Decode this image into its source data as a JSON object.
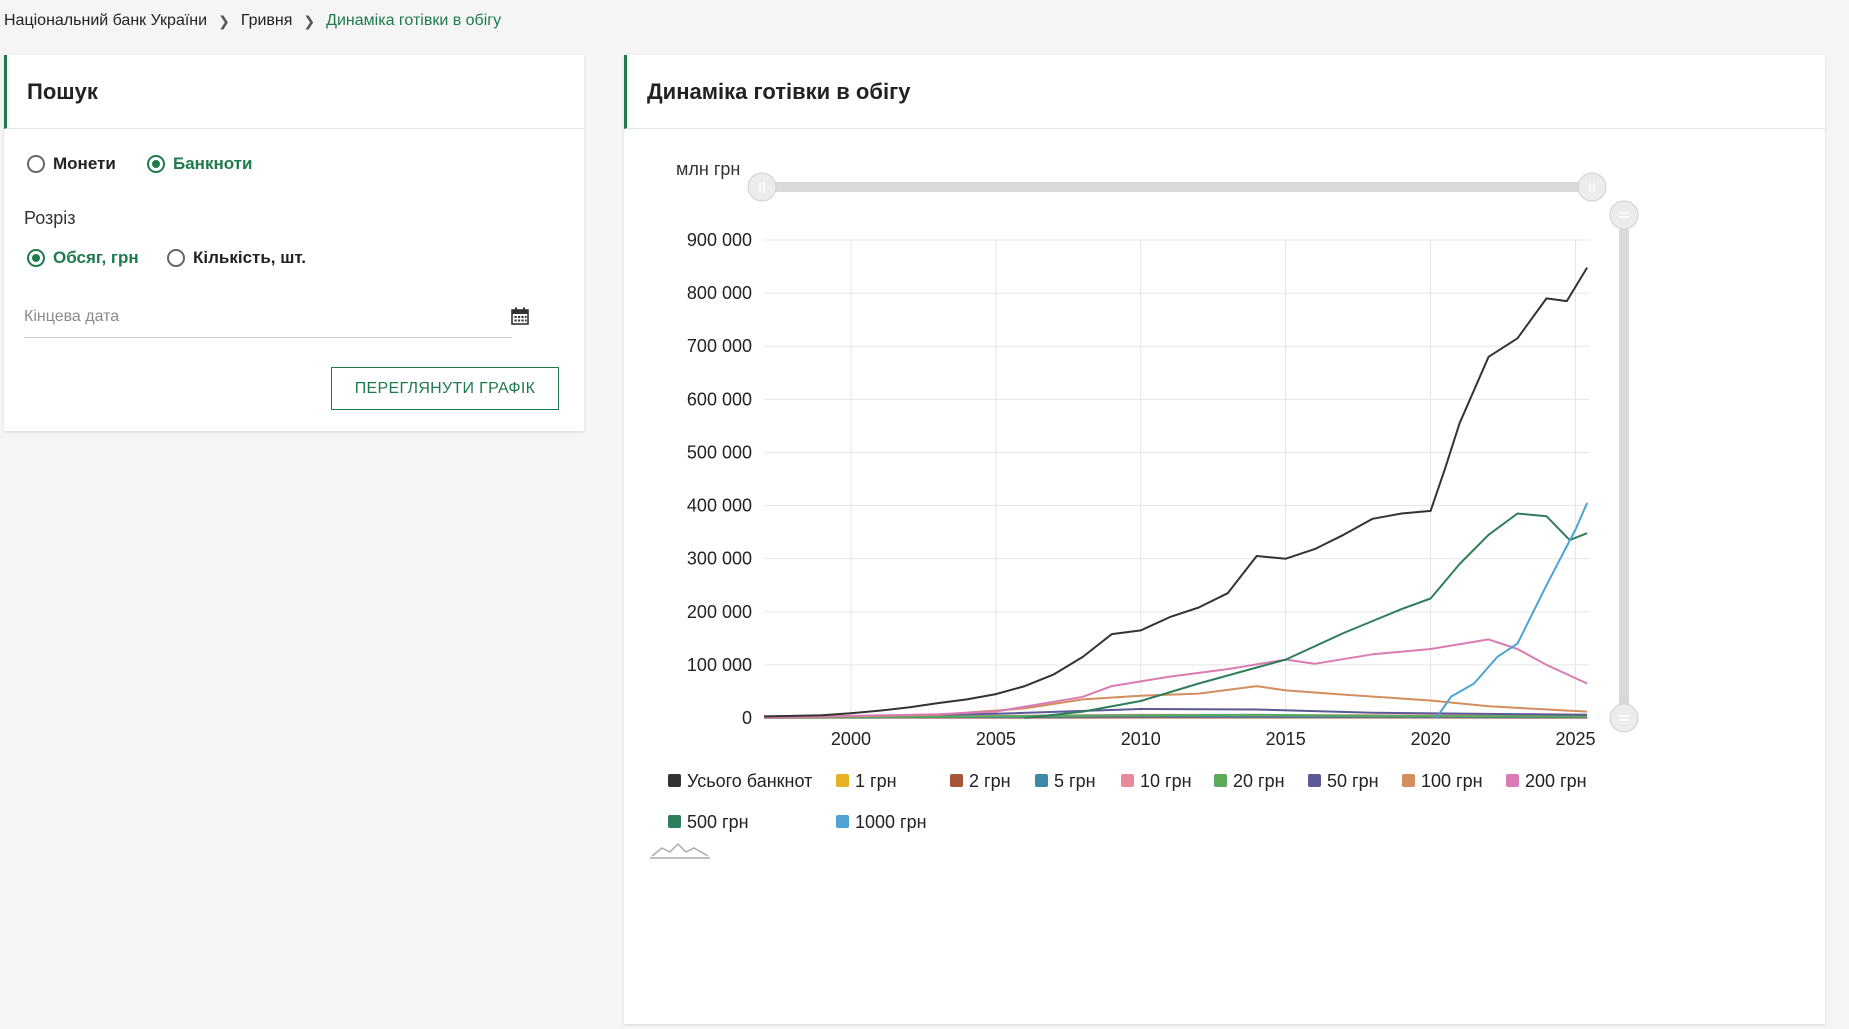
{
  "breadcrumb": {
    "items": [
      "Національний банк України",
      "Гривня",
      "Динаміка готівки в обігу"
    ]
  },
  "search_panel": {
    "title": "Пошук",
    "type_options": [
      {
        "label": "Монети",
        "checked": false
      },
      {
        "label": "Банкноти",
        "checked": true
      }
    ],
    "section_label": "Розріз",
    "section_options": [
      {
        "label": "Обсяг, грн",
        "checked": true
      },
      {
        "label": "Кількість, шт.",
        "checked": false
      }
    ],
    "end_date": {
      "placeholder": "Кінцева дата",
      "value": "",
      "icon": "calendar-icon"
    },
    "view_button_label": "ПЕРЕГЛЯНУТИ ГРАФІК"
  },
  "chart_panel": {
    "title": "Динаміка готівки в обігу"
  },
  "colors": {
    "accent": "#1f7a4d"
  },
  "chart_data": {
    "type": "line",
    "ylabel": "млн грн",
    "ylim": [
      0,
      900000
    ],
    "yticks": [
      0,
      100000,
      200000,
      300000,
      400000,
      500000,
      600000,
      700000,
      800000,
      900000
    ],
    "ytick_labels": [
      "0",
      "100 000",
      "200 000",
      "300 000",
      "400 000",
      "500 000",
      "600 000",
      "700 000",
      "800 000",
      "900 000"
    ],
    "xlim": [
      1997,
      2025.5
    ],
    "xticks": [
      2000,
      2005,
      2010,
      2015,
      2020,
      2025
    ],
    "grid": true,
    "legend_position": "bottom",
    "series": [
      {
        "name": "Усього банкнот",
        "color": "#333333",
        "points": [
          [
            1997,
            3000
          ],
          [
            1998,
            4000
          ],
          [
            1999,
            5000
          ],
          [
            2000,
            9000
          ],
          [
            2001,
            14000
          ],
          [
            2002,
            20000
          ],
          [
            2003,
            28000
          ],
          [
            2004,
            35000
          ],
          [
            2005,
            45000
          ],
          [
            2006,
            60000
          ],
          [
            2007,
            82000
          ],
          [
            2008,
            115000
          ],
          [
            2009,
            158000
          ],
          [
            2010,
            165000
          ],
          [
            2011,
            190000
          ],
          [
            2012,
            208000
          ],
          [
            2013,
            235000
          ],
          [
            2014,
            305000
          ],
          [
            2015,
            300000
          ],
          [
            2016,
            318000
          ],
          [
            2017,
            345000
          ],
          [
            2018,
            375000
          ],
          [
            2019,
            385000
          ],
          [
            2020,
            390000
          ],
          [
            2020.5,
            470000
          ],
          [
            2021,
            555000
          ],
          [
            2022,
            680000
          ],
          [
            2023,
            715000
          ],
          [
            2024,
            790000
          ],
          [
            2024.7,
            785000
          ],
          [
            2025.4,
            848000
          ]
        ]
      },
      {
        "name": "1 грн",
        "color": "#e6b027",
        "points": [
          [
            1997,
            800
          ],
          [
            2010,
            1500
          ],
          [
            2018,
            1200
          ],
          [
            2025.4,
            1000
          ]
        ]
      },
      {
        "name": "2 грн",
        "color": "#a6543a",
        "points": [
          [
            1997,
            600
          ],
          [
            2010,
            1000
          ],
          [
            2018,
            900
          ],
          [
            2025.4,
            800
          ]
        ]
      },
      {
        "name": "5 грн",
        "color": "#3d8aa8",
        "points": [
          [
            1997,
            500
          ],
          [
            2010,
            3000
          ],
          [
            2018,
            2500
          ],
          [
            2025.4,
            2000
          ]
        ]
      },
      {
        "name": "10 грн",
        "color": "#e98a9a",
        "points": [
          [
            1997,
            800
          ],
          [
            2010,
            6000
          ],
          [
            2018,
            5000
          ],
          [
            2025.4,
            4000
          ]
        ]
      },
      {
        "name": "20 грн",
        "color": "#5aaa5a",
        "points": [
          [
            1997,
            500
          ],
          [
            2010,
            5000
          ],
          [
            2014,
            6000
          ],
          [
            2018,
            4000
          ],
          [
            2025.4,
            3000
          ]
        ]
      },
      {
        "name": "50 грн",
        "color": "#5a5a96",
        "points": [
          [
            1997,
            700
          ],
          [
            2005,
            8000
          ],
          [
            2010,
            17000
          ],
          [
            2014,
            16000
          ],
          [
            2018,
            10000
          ],
          [
            2025.4,
            6000
          ]
        ]
      },
      {
        "name": "100 грн",
        "color": "#d38e5d",
        "points": [
          [
            1997,
            800
          ],
          [
            2003,
            6000
          ],
          [
            2006,
            18000
          ],
          [
            2008,
            35000
          ],
          [
            2010,
            42000
          ],
          [
            2012,
            46000
          ],
          [
            2014,
            60000
          ],
          [
            2015,
            52000
          ],
          [
            2017,
            44000
          ],
          [
            2020,
            33000
          ],
          [
            2022,
            22000
          ],
          [
            2025.4,
            12000
          ]
        ]
      },
      {
        "name": "200 грн",
        "color": "#d97bb5",
        "points": [
          [
            1997,
            1000
          ],
          [
            2003,
            7000
          ],
          [
            2005,
            12000
          ],
          [
            2008,
            40000
          ],
          [
            2009,
            60000
          ],
          [
            2011,
            78000
          ],
          [
            2013,
            92000
          ],
          [
            2015,
            110000
          ],
          [
            2016,
            102000
          ],
          [
            2018,
            120000
          ],
          [
            2020,
            130000
          ],
          [
            2022,
            148000
          ],
          [
            2023,
            130000
          ],
          [
            2024,
            100000
          ],
          [
            2025.4,
            65000
          ]
        ]
      },
      {
        "name": "500 грн",
        "color": "#2e7d5b",
        "points": [
          [
            2006,
            0
          ],
          [
            2008,
            12000
          ],
          [
            2010,
            32000
          ],
          [
            2012,
            65000
          ],
          [
            2014,
            95000
          ],
          [
            2015,
            110000
          ],
          [
            2017,
            160000
          ],
          [
            2019,
            205000
          ],
          [
            2020,
            225000
          ],
          [
            2021,
            290000
          ],
          [
            2022,
            345000
          ],
          [
            2023,
            385000
          ],
          [
            2024,
            380000
          ],
          [
            2024.8,
            335000
          ],
          [
            2025.4,
            348000
          ]
        ]
      },
      {
        "name": "1000 грн",
        "color": "#4ea3d4",
        "points": [
          [
            2020.2,
            0
          ],
          [
            2020.7,
            40000
          ],
          [
            2021.5,
            65000
          ],
          [
            2022.3,
            115000
          ],
          [
            2023,
            140000
          ],
          [
            2024,
            250000
          ],
          [
            2025,
            355000
          ],
          [
            2025.4,
            405000
          ]
        ]
      }
    ]
  }
}
